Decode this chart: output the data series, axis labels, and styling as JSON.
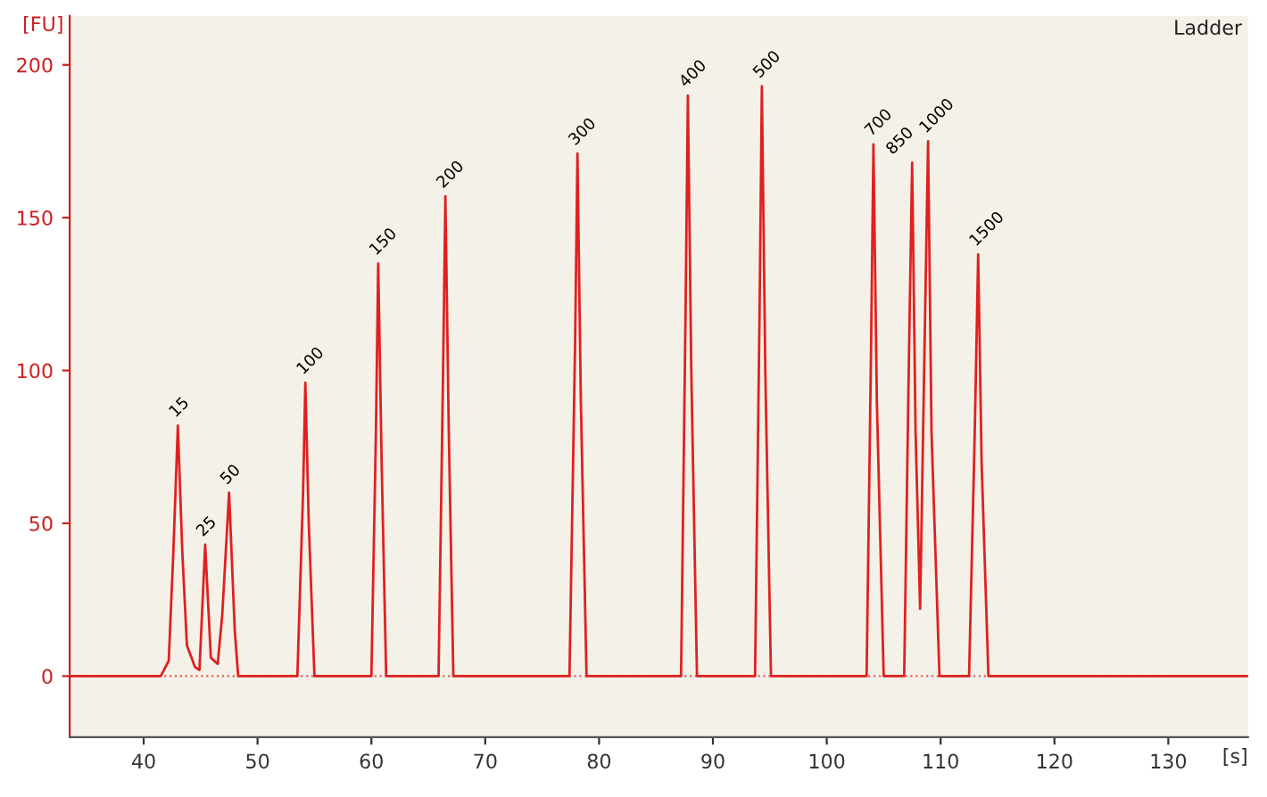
{
  "chart_data": {
    "type": "line",
    "title": "Ladder",
    "xlabel": "[s]",
    "ylabel": "[FU]",
    "xlim": [
      33.5,
      137
    ],
    "ylim": [
      -20,
      216
    ],
    "xticks": [
      40,
      50,
      60,
      70,
      80,
      90,
      100,
      110,
      120,
      130
    ],
    "yticks": [
      0,
      50,
      100,
      150,
      200
    ],
    "grid": false,
    "legend": false,
    "marker": "none",
    "line_style": "solid",
    "series": [
      {
        "color": "#e02020",
        "x": [
          33.5,
          41.5,
          42.2,
          42.6,
          43.0,
          43.4,
          43.8,
          44.5,
          44.9,
          45.4,
          45.9,
          46.5,
          46.9,
          47.5,
          48.0,
          48.3,
          53.5,
          54.0,
          54.2,
          54.5,
          55.0,
          60.0,
          60.4,
          60.6,
          60.9,
          61.3,
          65.9,
          66.3,
          66.5,
          66.8,
          67.2,
          77.4,
          77.9,
          78.1,
          78.4,
          78.9,
          87.2,
          87.6,
          87.8,
          88.1,
          88.6,
          93.7,
          94.1,
          94.3,
          94.6,
          95.1,
          103.5,
          103.9,
          104.1,
          104.4,
          105.0,
          106.8,
          107.2,
          107.5,
          107.8,
          108.2,
          108.6,
          108.9,
          109.2,
          109.9,
          112.5,
          113.0,
          113.3,
          113.6,
          114.2,
          137
        ],
        "values": [
          0,
          0,
          5,
          40,
          82,
          40,
          10,
          3,
          2,
          43,
          6,
          4,
          20,
          60,
          15,
          0,
          0,
          60,
          96,
          50,
          0,
          0,
          80,
          135,
          70,
          0,
          0,
          100,
          157,
          80,
          0,
          0,
          110,
          171,
          90,
          0,
          0,
          120,
          190,
          100,
          0,
          0,
          120,
          193,
          100,
          0,
          0,
          110,
          174,
          90,
          0,
          0,
          100,
          168,
          80,
          22,
          110,
          175,
          80,
          0,
          0,
          80,
          138,
          70,
          0,
          0
        ]
      }
    ],
    "ref_lines": [
      {
        "axis": "y",
        "value": 0,
        "color": "#e06060",
        "line_style": "dotted"
      }
    ],
    "annotations": [
      {
        "text": "15",
        "x": 43.0,
        "y": 82
      },
      {
        "text": "25",
        "x": 45.4,
        "y": 43
      },
      {
        "text": "50",
        "x": 47.5,
        "y": 60
      },
      {
        "text": "100",
        "x": 54.2,
        "y": 96
      },
      {
        "text": "150",
        "x": 60.6,
        "y": 135
      },
      {
        "text": "200",
        "x": 66.5,
        "y": 157
      },
      {
        "text": "300",
        "x": 78.1,
        "y": 171
      },
      {
        "text": "400",
        "x": 87.8,
        "y": 190
      },
      {
        "text": "500",
        "x": 94.3,
        "y": 193
      },
      {
        "text": "700",
        "x": 104.1,
        "y": 174
      },
      {
        "text": "850",
        "x": 107.5,
        "y": 168
      },
      {
        "text": "1000",
        "x": 108.9,
        "y": 175
      },
      {
        "text": "1500",
        "x": 113.3,
        "y": 138
      }
    ]
  }
}
